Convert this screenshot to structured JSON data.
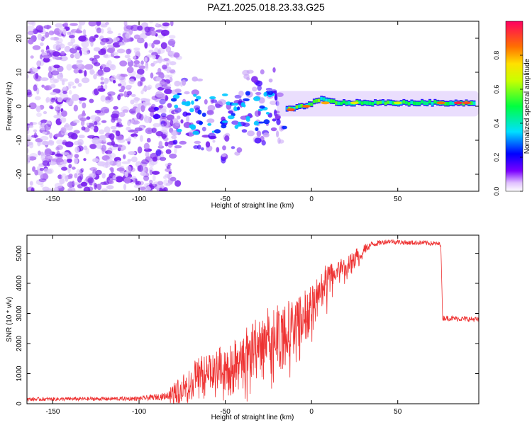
{
  "title": "PAZ1.2025.018.23.33.G25",
  "chart_data": [
    {
      "type": "heatmap",
      "name": "spectrogram",
      "title": "PAZ1.2025.018.23.33.G25",
      "xlabel": "Height of straight line (km)",
      "ylabel": "Frequency (Hz)",
      "xlim": [
        -165,
        97
      ],
      "ylim": [
        -25,
        25
      ],
      "x_ticks": [
        -150,
        -100,
        -50,
        0,
        50
      ],
      "x_tick_labels": [
        "-150",
        "-100",
        "-50",
        "0",
        "50"
      ],
      "y_ticks": [
        -20,
        -10,
        0,
        10,
        20
      ],
      "y_tick_labels": [
        "-20",
        "-10",
        "0",
        "10",
        "20"
      ],
      "ridge_points": [
        {
          "x": -85,
          "y": 5
        },
        {
          "x": -75,
          "y": -2
        },
        {
          "x": -65,
          "y": -5
        },
        {
          "x": -55,
          "y": -2
        },
        {
          "x": -45,
          "y": -3
        },
        {
          "x": -35,
          "y": 2
        },
        {
          "x": -25,
          "y": 2
        },
        {
          "x": -15,
          "y": -1
        },
        {
          "x": -5,
          "y": 0
        },
        {
          "x": 5,
          "y": 2
        },
        {
          "x": 15,
          "y": 1
        },
        {
          "x": 95,
          "y": 1
        }
      ],
      "colorbar": {
        "label": "Normalized spectral amplitude",
        "range": [
          0,
          1
        ],
        "ticks": [
          0.0,
          0.2,
          0.4,
          0.6,
          0.8
        ],
        "tick_labels": [
          "0.0",
          "0.2",
          "0.4",
          "0.6",
          "0.8"
        ]
      }
    },
    {
      "type": "line",
      "name": "snr",
      "xlabel": "Height of straight line (km)",
      "ylabel": "SNR (10 * v/v)",
      "xlim": [
        -165,
        97
      ],
      "ylim": [
        0,
        5600
      ],
      "x_ticks": [
        -150,
        -100,
        -50,
        0,
        50
      ],
      "x_tick_labels": [
        "-150",
        "-100",
        "-50",
        "0",
        "50"
      ],
      "y_ticks": [
        0,
        1000,
        2000,
        3000,
        4000,
        5000
      ],
      "y_tick_labels": [
        "0",
        "1000",
        "2000",
        "3000",
        "4000",
        "5000"
      ],
      "series": [
        {
          "name": "SNR",
          "color": "#ee3333",
          "envelope_x": [
            -165,
            -100,
            -85,
            -75,
            -65,
            -55,
            -45,
            -35,
            -25,
            -15,
            -5,
            0,
            5,
            10,
            15,
            25,
            35,
            45,
            55,
            65,
            75,
            76,
            97
          ],
          "envelope_y": [
            150,
            170,
            250,
            600,
            1100,
            1300,
            1500,
            1900,
            2300,
            2500,
            3000,
            3300,
            3900,
            4300,
            4500,
            4900,
            5300,
            5400,
            5350,
            5350,
            5300,
            2850,
            2800
          ],
          "noise_amplitude": [
            60,
            70,
            120,
            400,
            500,
            550,
            600,
            800,
            900,
            900,
            700,
            700,
            600,
            500,
            350,
            250,
            100,
            80,
            80,
            80,
            80,
            90,
            90
          ]
        }
      ]
    }
  ]
}
